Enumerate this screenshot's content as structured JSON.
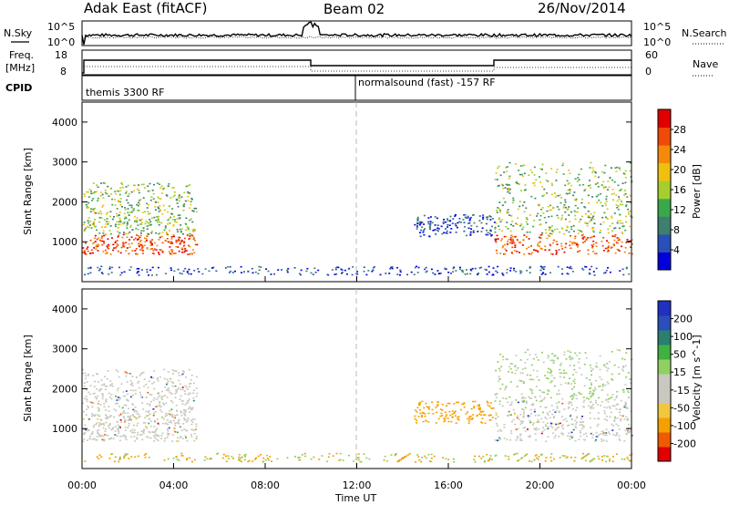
{
  "header": {
    "station": "Adak East (fitACF)",
    "beam": "Beam 02",
    "date": "26/Nov/2014"
  },
  "left_labels": {
    "nsky": "N.Sky",
    "freq": "Freq.",
    "freq_unit": "[MHz]",
    "cpid": "CPID"
  },
  "right_labels": {
    "nsearch": "N.Search",
    "nave": "Nave"
  },
  "noise_panel": {
    "left_ticks": [
      "10^5",
      "10^0"
    ],
    "right_ticks": [
      "10^5",
      "10^0"
    ]
  },
  "freq_panel": {
    "left_ticks": [
      "18",
      "8"
    ],
    "right_ticks": [
      "60",
      "0"
    ]
  },
  "cpid_segments": [
    {
      "label": "themis 3300 RF",
      "start_hour": 0
    },
    {
      "label": "normalsound (fast) -157 RF",
      "start_hour": 12
    }
  ],
  "colors": {
    "power_scale": [
      "#0000dd",
      "#2a4fb8",
      "#3f7f6f",
      "#39a84a",
      "#a4cf2c",
      "#f0c010",
      "#f58a0a",
      "#f04a08",
      "#e00000"
    ],
    "velocity_scale": [
      "#e00000",
      "#f05a00",
      "#f5a000",
      "#f0c840",
      "#c8c8c0",
      "#c8c8c0",
      "#90d060",
      "#40b040",
      "#2a7f6f",
      "#2a4fb8",
      "#2030c0"
    ]
  },
  "chart_data": [
    {
      "type": "heatmap",
      "title": "",
      "ylabel": "Slant Range [km]",
      "xlabel": "",
      "x": [
        "00:00",
        "04:00",
        "08:00",
        "12:00",
        "16:00",
        "20:00",
        "00:00"
      ],
      "xlim_hours": [
        0,
        24
      ],
      "ylim": [
        0,
        4500
      ],
      "yticks": [
        1000,
        2000,
        3000,
        4000
      ],
      "colorbar": {
        "label": "Power [dB]",
        "ticks": [
          4,
          8,
          12,
          16,
          20,
          24,
          28
        ],
        "range": [
          0,
          30
        ]
      },
      "regions": [
        {
          "name": "morning-echo",
          "x_start": 0.0,
          "x_end": 5.0,
          "y_min": 700,
          "y_max": 2500,
          "peak_db": 28
        },
        {
          "name": "gap-echo",
          "x_start": 14.5,
          "x_end": 18.0,
          "y_min": 1150,
          "y_max": 1700,
          "peak_db": 8
        },
        {
          "name": "evening-echo",
          "x_start": 18.0,
          "x_end": 24.0,
          "y_min": 700,
          "y_max": 3000,
          "peak_db": 28
        },
        {
          "name": "ground-clutter",
          "x_start": 0.0,
          "x_end": 24.0,
          "y_min": 180,
          "y_max": 400,
          "peak_db": 8
        }
      ]
    },
    {
      "type": "heatmap",
      "title": "",
      "ylabel": "Slant Range [km]",
      "xlabel": "Time UT",
      "x": [
        "00:00",
        "04:00",
        "08:00",
        "12:00",
        "16:00",
        "20:00",
        "00:00"
      ],
      "xlim_hours": [
        0,
        24
      ],
      "ylim": [
        0,
        4500
      ],
      "yticks": [
        1000,
        2000,
        3000,
        4000
      ],
      "colorbar": {
        "label": "Velocity [m s^-1]",
        "ticks": [
          200,
          100,
          50,
          15,
          -15,
          -50,
          -100,
          -200
        ],
        "range": [
          -250,
          250
        ]
      },
      "regions": [
        {
          "name": "morning-echo",
          "x_start": 0.0,
          "x_end": 5.0,
          "y_min": 700,
          "y_max": 2500,
          "velocity": 0
        },
        {
          "name": "gap-echo",
          "x_start": 14.5,
          "x_end": 18.0,
          "y_min": 1150,
          "y_max": 1700,
          "velocity": -60
        },
        {
          "name": "evening-echo",
          "x_start": 18.0,
          "x_end": 24.0,
          "y_min": 700,
          "y_max": 3000,
          "velocity": 30
        },
        {
          "name": "ground-clutter",
          "x_start": 0.0,
          "x_end": 24.0,
          "y_min": 180,
          "y_max": 400,
          "velocity": -30
        }
      ]
    }
  ]
}
